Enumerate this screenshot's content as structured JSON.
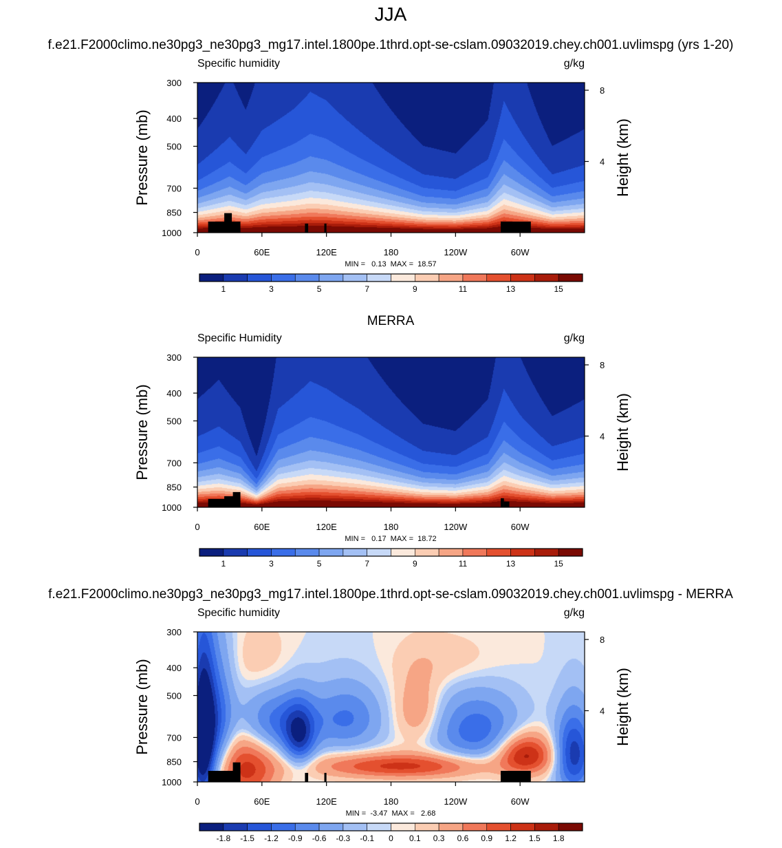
{
  "figure": {
    "title": "JJA",
    "model_run_title": "f.e21.F2000climo.ne30pg3_ne30pg3_mg17.intel.1800pe.1thrd.opt-se-cslam.09032019.chey.ch001.uvlimspg (yrs 1-20)",
    "obs_title": "MERRA",
    "diff_title": "f.e21.F2000climo.ne30pg3_ne30pg3_mg17.intel.1800pe.1thrd.opt-se-cslam.09032019.chey.ch001.uvlimspg - MERRA"
  },
  "chart_data": [
    {
      "type": "heatmap",
      "variable_label": "Specific humidity",
      "units": "g/kg",
      "ylabel": "Pressure (mb)",
      "ylabel_right": "Height (km)",
      "x_ticks": [
        "0",
        "60E",
        "120E",
        "180",
        "120W",
        "60W"
      ],
      "x_tick_lon": [
        0,
        60,
        120,
        180,
        240,
        300
      ],
      "xlim": [
        0,
        360
      ],
      "y_ticks": [
        "300",
        "400",
        "500",
        "700",
        "850",
        "1000"
      ],
      "y_tick_p": [
        300,
        400,
        500,
        700,
        850,
        1000
      ],
      "ylim": [
        1000,
        300
      ],
      "right_ticks": [
        "8",
        "4"
      ],
      "right_tick_km": [
        8,
        4
      ],
      "min_max": "MIN =   0.13  MAX =  18.57",
      "min": 0.13,
      "max": 18.57,
      "colorbar_labels": [
        "1",
        "3",
        "5",
        "7",
        "9",
        "11",
        "13",
        "15"
      ],
      "colorbar_levels": [
        1,
        2,
        3,
        4,
        5,
        6,
        7,
        8,
        9,
        10,
        11,
        12,
        13,
        14,
        15
      ],
      "colorbar_colors": [
        "#0b1f7e",
        "#1a3bb0",
        "#2656d8",
        "#3a6ee8",
        "#5a8aec",
        "#7ea6f0",
        "#a3c0f4",
        "#c7d9f7",
        "#fbe9dc",
        "#fbcdb3",
        "#f6a585",
        "#f0785a",
        "#e4502f",
        "#cd3217",
        "#a81c0a",
        "#7a0a03"
      ],
      "terrain": [
        [
          10,
          40,
          915
        ],
        [
          25,
          32,
          855
        ],
        [
          100,
          103,
          930
        ],
        [
          118,
          120,
          930
        ],
        [
          282,
          310,
          915
        ]
      ],
      "field": {
        "kind": "full",
        "surface": 17.8,
        "scale_height": 330,
        "moist_lon": [
          0,
          30,
          45,
          60,
          90,
          105,
          120,
          150,
          180,
          210,
          240,
          270,
          285,
          300,
          330,
          360
        ],
        "moist_val": [
          0.9,
          1.15,
          1.0,
          1.2,
          1.35,
          1.45,
          1.4,
          1.2,
          1.0,
          0.8,
          0.75,
          0.95,
          1.4,
          1.2,
          0.8,
          0.9
        ]
      }
    },
    {
      "type": "heatmap",
      "variable_label": "Specific Humidity",
      "units": "g/kg",
      "ylabel": "Pressure (mb)",
      "ylabel_right": "Height (km)",
      "x_ticks": [
        "0",
        "60E",
        "120E",
        "180",
        "120W",
        "60W"
      ],
      "x_tick_lon": [
        0,
        60,
        120,
        180,
        240,
        300
      ],
      "xlim": [
        0,
        360
      ],
      "y_ticks": [
        "300",
        "400",
        "500",
        "700",
        "850",
        "1000"
      ],
      "y_tick_p": [
        300,
        400,
        500,
        700,
        850,
        1000
      ],
      "ylim": [
        1000,
        300
      ],
      "right_ticks": [
        "8",
        "4"
      ],
      "right_tick_km": [
        8,
        4
      ],
      "min_max": "MIN =   0.17  MAX =  18.72",
      "min": 0.17,
      "max": 18.72,
      "colorbar_labels": [
        "1",
        "3",
        "5",
        "7",
        "9",
        "11",
        "13",
        "15"
      ],
      "colorbar_levels": [
        1,
        2,
        3,
        4,
        5,
        6,
        7,
        8,
        9,
        10,
        11,
        12,
        13,
        14,
        15
      ],
      "colorbar_colors": [
        "#0b1f7e",
        "#1a3bb0",
        "#2656d8",
        "#3a6ee8",
        "#5a8aec",
        "#7ea6f0",
        "#a3c0f4",
        "#c7d9f7",
        "#fbe9dc",
        "#fbcdb3",
        "#f6a585",
        "#f0785a",
        "#e4502f",
        "#cd3217",
        "#a81c0a",
        "#7a0a03"
      ],
      "terrain": [
        [
          10,
          35,
          935
        ],
        [
          25,
          37,
          915
        ],
        [
          33,
          40,
          885
        ],
        [
          282,
          285,
          930
        ],
        [
          285,
          290,
          955
        ]
      ],
      "field": {
        "kind": "full",
        "surface": 18.0,
        "scale_height": 320,
        "moist_lon": [
          0,
          20,
          40,
          55,
          75,
          105,
          120,
          150,
          180,
          210,
          240,
          270,
          285,
          300,
          330,
          360
        ],
        "moist_val": [
          0.95,
          1.05,
          0.9,
          0.55,
          1.2,
          1.4,
          1.35,
          1.2,
          1.0,
          0.8,
          0.75,
          0.95,
          1.35,
          1.15,
          0.85,
          0.95
        ]
      }
    },
    {
      "type": "heatmap",
      "variable_label": "Specific humidity",
      "units": "g/kg",
      "ylabel": "Pressure (mb)",
      "ylabel_right": "Height (km)",
      "x_ticks": [
        "0",
        "60E",
        "120E",
        "180",
        "120W",
        "60W"
      ],
      "x_tick_lon": [
        0,
        60,
        120,
        180,
        240,
        300
      ],
      "xlim": [
        0,
        360
      ],
      "y_ticks": [
        "300",
        "400",
        "500",
        "700",
        "850",
        "1000"
      ],
      "y_tick_p": [
        300,
        400,
        500,
        700,
        850,
        1000
      ],
      "ylim": [
        1000,
        300
      ],
      "right_ticks": [
        "8",
        "4"
      ],
      "right_tick_km": [
        8,
        4
      ],
      "min_max": "MIN =  -3.47  MAX =   2.68",
      "min": -3.47,
      "max": 2.68,
      "colorbar_labels": [
        "-1.8",
        "-1.5",
        "-1.2",
        "-0.9",
        "-0.6",
        "-0.3",
        "-0.1",
        "0",
        "0.1",
        "0.3",
        "0.6",
        "0.9",
        "1.2",
        "1.5",
        "1.8"
      ],
      "colorbar_levels": [
        -1.8,
        -1.5,
        -1.2,
        -0.9,
        -0.6,
        -0.3,
        -0.1,
        0,
        0.1,
        0.3,
        0.6,
        0.9,
        1.2,
        1.5,
        1.8
      ],
      "colorbar_colors": [
        "#0b1f7e",
        "#1a3bb0",
        "#2656d8",
        "#3a6ee8",
        "#5a8aec",
        "#7ea6f0",
        "#a3c0f4",
        "#c7d9f7",
        "#fbe9dc",
        "#fbcdb3",
        "#f6a585",
        "#f0785a",
        "#e4502f",
        "#cd3217",
        "#a81c0a",
        "#7a0a03"
      ],
      "terrain": [
        [
          10,
          40,
          915
        ],
        [
          33,
          40,
          855
        ],
        [
          100,
          103,
          930
        ],
        [
          118,
          120,
          930
        ],
        [
          282,
          310,
          915
        ]
      ],
      "field": {
        "kind": "diff",
        "blobs": [
          [
            5,
            700,
            8,
            300,
            -2.6
          ],
          [
            20,
            620,
            10,
            220,
            -1.0
          ],
          [
            45,
            900,
            20,
            170,
            1.3
          ],
          [
            75,
            620,
            26,
            110,
            -1.1
          ],
          [
            95,
            700,
            10,
            120,
            -1.3
          ],
          [
            140,
            600,
            22,
            110,
            -0.9
          ],
          [
            190,
            880,
            55,
            60,
            1.3
          ],
          [
            205,
            560,
            15,
            110,
            0.6
          ],
          [
            260,
            660,
            28,
            130,
            -1.1
          ],
          [
            305,
            800,
            18,
            90,
            1.6
          ],
          [
            350,
            800,
            12,
            180,
            -1.7
          ],
          [
            235,
            380,
            35,
            60,
            0.25
          ],
          [
            60,
            380,
            20,
            80,
            0.25
          ]
        ]
      }
    }
  ]
}
